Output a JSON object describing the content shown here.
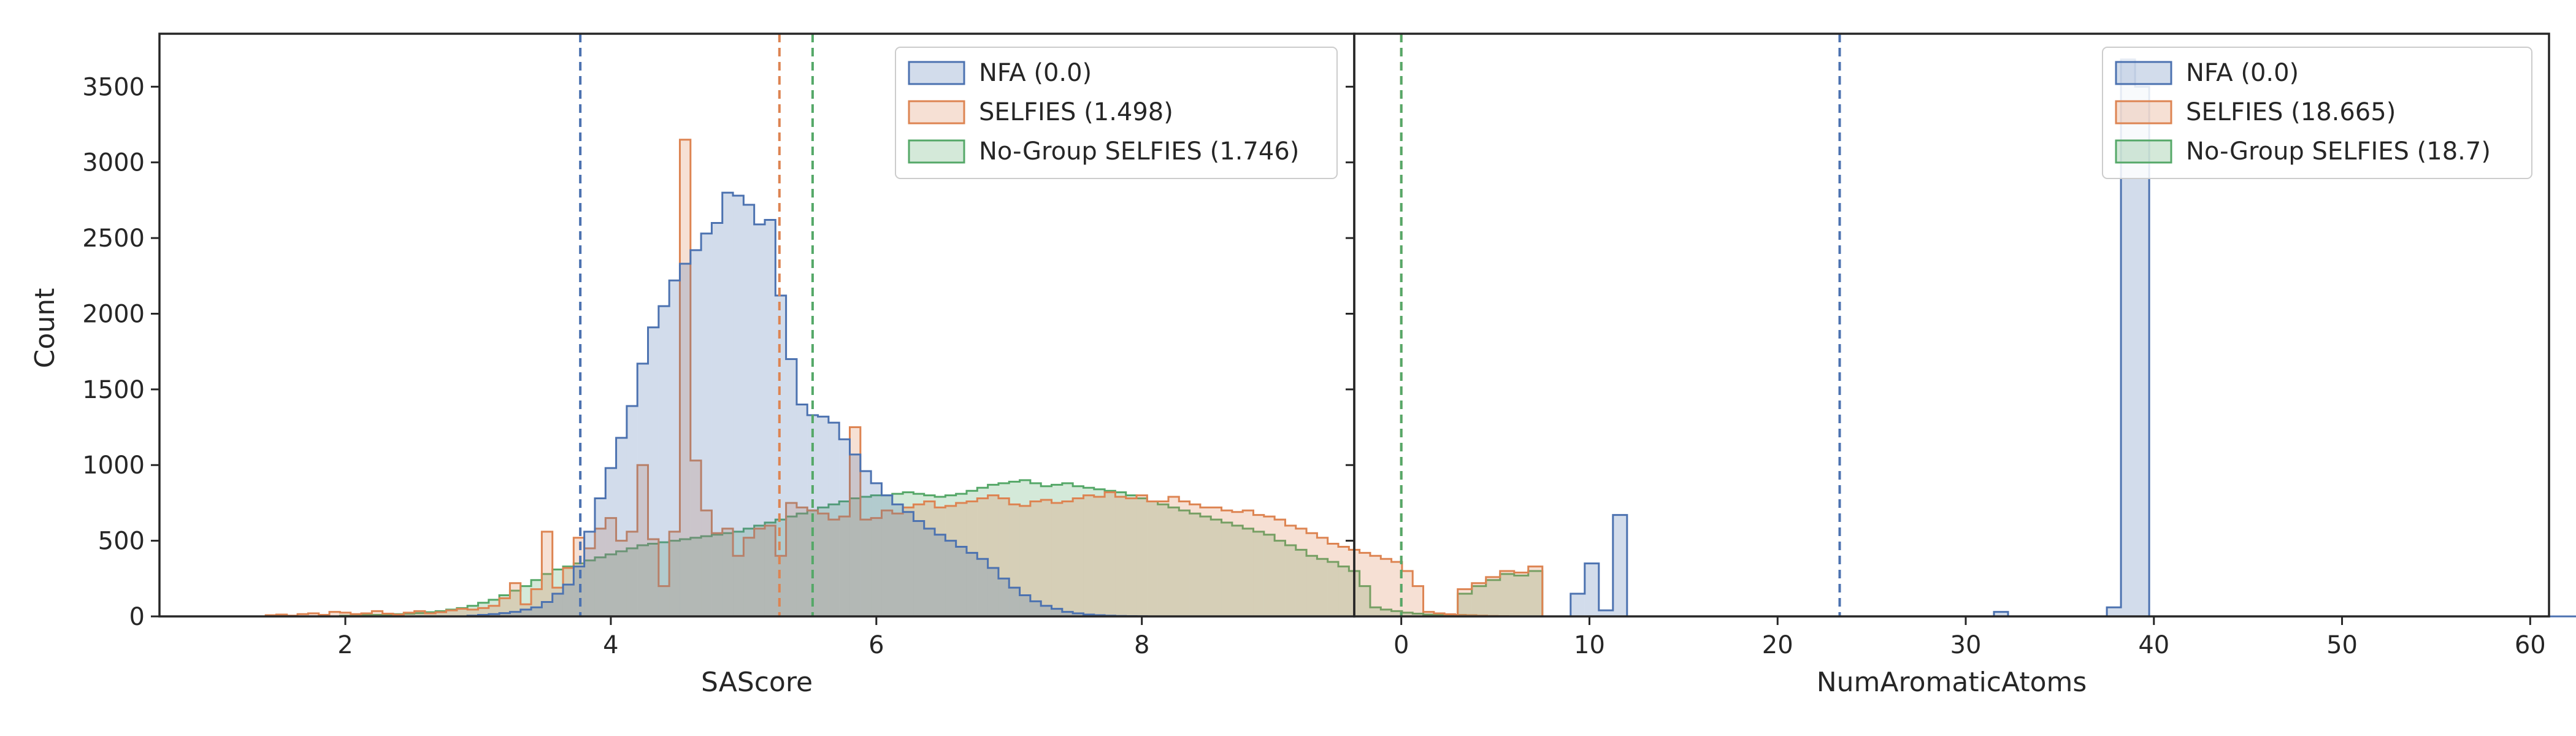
{
  "shared": {
    "ylabel": "Count",
    "yticks": [
      0,
      500,
      1000,
      1500,
      2000,
      2500,
      3000,
      3500
    ]
  },
  "colors": {
    "NFA": "#4c72b0",
    "SELFIES": "#dd8452",
    "NoGroup": "#55a868"
  },
  "chart_data": [
    {
      "type": "histogram",
      "xlabel": "SAScore",
      "xlim": [
        0.6,
        9.6
      ],
      "ylim": [
        0,
        3850
      ],
      "xticks": [
        2,
        4,
        6,
        8
      ],
      "legend": {
        "placement": "top-right",
        "entries": [
          "NFA (0.0)",
          "SELFIES (1.498)",
          "No-Group SELFIES (1.746)"
        ]
      },
      "bin_start": 1.0,
      "bin_width": 0.08,
      "vlines": {
        "NFA": 3.77,
        "SELFIES": 5.27,
        "NoGroup": 5.52
      },
      "series": [
        {
          "name": "NFA (0.0)",
          "key": "NFA",
          "values": [
            0,
            0,
            0,
            0,
            0,
            0,
            0,
            0,
            0,
            0,
            0,
            0,
            0,
            0,
            0,
            0,
            0,
            0,
            0,
            0,
            0,
            0,
            0,
            0,
            5,
            10,
            15,
            22,
            30,
            45,
            60,
            95,
            150,
            210,
            330,
            560,
            780,
            980,
            1180,
            1390,
            1670,
            1910,
            2050,
            2220,
            2330,
            2420,
            2530,
            2600,
            2800,
            2780,
            2720,
            2590,
            2620,
            2120,
            1700,
            1400,
            1330,
            1320,
            1280,
            1170,
            1070,
            960,
            880,
            800,
            740,
            690,
            630,
            580,
            540,
            500,
            460,
            420,
            380,
            320,
            250,
            190,
            140,
            100,
            70,
            50,
            30,
            20,
            12,
            8,
            5,
            3,
            2,
            1,
            0,
            0,
            0,
            0,
            0,
            0,
            0,
            0,
            0,
            0,
            0,
            0,
            0,
            0,
            0,
            0,
            0,
            0,
            0,
            0,
            0,
            0,
            0,
            0,
            0,
            0,
            0,
            0
          ]
        },
        {
          "name": "SELFIES (1.498)",
          "key": "SELFIES",
          "values": [
            0,
            0,
            0,
            0,
            0,
            8,
            12,
            5,
            15,
            20,
            10,
            30,
            25,
            15,
            20,
            35,
            18,
            12,
            25,
            35,
            20,
            28,
            40,
            50,
            45,
            55,
            70,
            120,
            220,
            80,
            180,
            560,
            190,
            320,
            520,
            450,
            580,
            650,
            500,
            560,
            1000,
            510,
            200,
            560,
            3150,
            1030,
            700,
            550,
            580,
            400,
            520,
            580,
            600,
            400,
            750,
            720,
            700,
            680,
            640,
            660,
            1250,
            640,
            650,
            700,
            680,
            720,
            740,
            760,
            720,
            730,
            750,
            760,
            780,
            800,
            780,
            740,
            730,
            760,
            770,
            750,
            760,
            780,
            800,
            790,
            820,
            790,
            780,
            800,
            760,
            760,
            790,
            760,
            740,
            720,
            720,
            700,
            690,
            700,
            670,
            660,
            640,
            600,
            580,
            550,
            520,
            480,
            460,
            440,
            420,
            400,
            380,
            360,
            300,
            200,
            30,
            20,
            14,
            10,
            8,
            5,
            3,
            2,
            1,
            0
          ]
        },
        {
          "name": "No-Group SELFIES (1.746)",
          "key": "NoGroup",
          "values": [
            0,
            0,
            0,
            0,
            0,
            0,
            0,
            0,
            0,
            0,
            0,
            0,
            5,
            5,
            8,
            10,
            12,
            15,
            18,
            22,
            28,
            35,
            45,
            55,
            70,
            90,
            110,
            140,
            170,
            200,
            240,
            280,
            310,
            330,
            350,
            370,
            390,
            410,
            430,
            450,
            470,
            480,
            490,
            500,
            510,
            520,
            530,
            540,
            550,
            560,
            580,
            600,
            620,
            640,
            660,
            680,
            700,
            720,
            740,
            760,
            780,
            790,
            800,
            800,
            810,
            820,
            810,
            800,
            790,
            800,
            810,
            830,
            850,
            870,
            880,
            890,
            900,
            880,
            860,
            870,
            880,
            860,
            850,
            840,
            830,
            820,
            800,
            780,
            760,
            740,
            720,
            700,
            680,
            660,
            640,
            620,
            600,
            580,
            560,
            540,
            500,
            470,
            440,
            400,
            380,
            360,
            330,
            300,
            200,
            60,
            45,
            35,
            25,
            18,
            12,
            8,
            5,
            3,
            2,
            1
          ]
        }
      ]
    },
    {
      "type": "histogram",
      "xlabel": "NumAromaticAtoms",
      "xlim": [
        -2.5,
        61
      ],
      "ylim": [
        0,
        3850
      ],
      "xticks": [
        0,
        10,
        20,
        30,
        40,
        50,
        60
      ],
      "legend": {
        "placement": "top-right",
        "entries": [
          "NFA (0.0)",
          "SELFIES (18.665)",
          "No-Group SELFIES (18.7)"
        ]
      },
      "bin_start": 3.0,
      "bin_width": 0.75,
      "vlines": {
        "NFA": 23.3,
        "SELFIES": 0,
        "NoGroup": 0
      },
      "series": [
        {
          "name": "NFA (0.0)",
          "key": "NFA",
          "values": [
            0,
            0,
            0,
            0,
            0,
            0,
            0,
            0,
            150,
            350,
            40,
            670,
            0,
            0,
            0,
            0,
            0,
            0,
            0,
            0,
            0,
            0,
            0,
            0,
            0,
            0,
            0,
            0,
            0,
            0,
            0,
            0,
            0,
            0,
            0,
            0,
            0,
            0,
            30,
            0,
            0,
            0,
            0,
            0,
            0,
            0,
            60,
            3680,
            3500,
            0,
            0,
            0,
            0,
            0,
            0,
            0,
            0,
            0,
            0,
            0,
            0,
            0,
            0,
            0,
            0,
            0,
            0,
            0,
            0,
            0,
            0,
            0,
            0,
            0,
            0,
            0,
            0,
            0,
            0,
            0,
            0,
            0
          ]
        },
        {
          "name": "SELFIES (18.665)",
          "key": "SELFIES",
          "values": [
            180,
            220,
            260,
            300,
            290,
            330,
            0
          ]
        },
        {
          "name": "No-Group SELFIES (18.7)",
          "key": "NoGroup",
          "values": [
            150,
            200,
            240,
            280,
            270,
            300,
            0
          ]
        }
      ]
    }
  ]
}
